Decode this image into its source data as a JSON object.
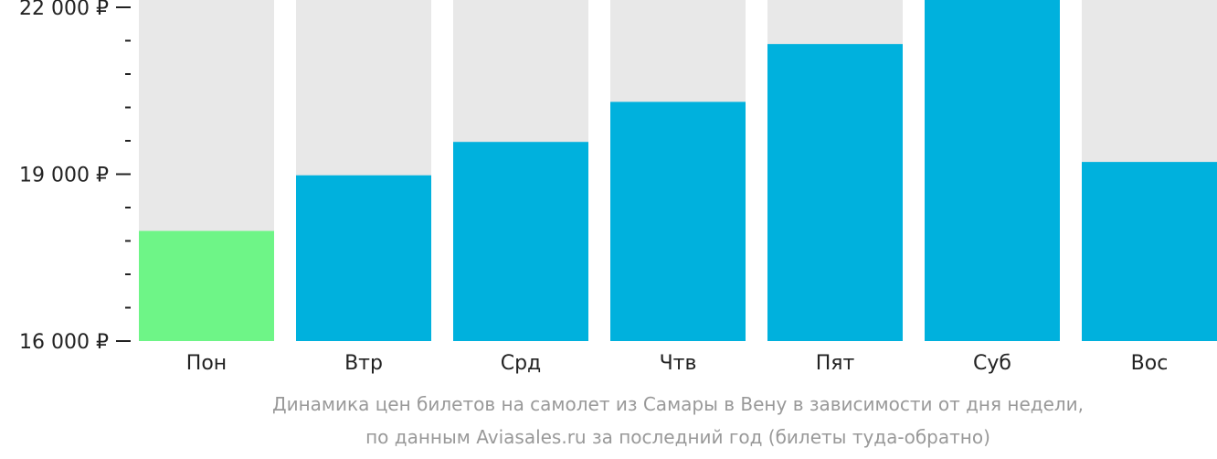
{
  "chart_data": {
    "type": "bar",
    "categories": [
      "Пон",
      "Втр",
      "Срд",
      "Чтв",
      "Пят",
      "Суб",
      "Вос"
    ],
    "values": [
      17980,
      18980,
      19580,
      20300,
      21340,
      22300,
      19220
    ],
    "ylim": [
      16000,
      22000
    ],
    "y_ticks": [
      {
        "value": 16000,
        "label": "16 000 ₽"
      },
      {
        "value": 19000,
        "label": "19 000 ₽"
      },
      {
        "value": 22000,
        "label": "22 000 ₽"
      }
    ],
    "minor_ticks_per_interval": 4,
    "highlight_index": 0,
    "colors": {
      "bar": "#00b1dd",
      "highlight": "#6ef587",
      "background_column": "#e8e8e8"
    },
    "caption_lines": [
      "Динамика цен билетов на самолет из Самары в Вену в зависимости от дня недели,",
      "по данным Aviasales.ru за последний год (билеты туда-обратно)"
    ]
  }
}
